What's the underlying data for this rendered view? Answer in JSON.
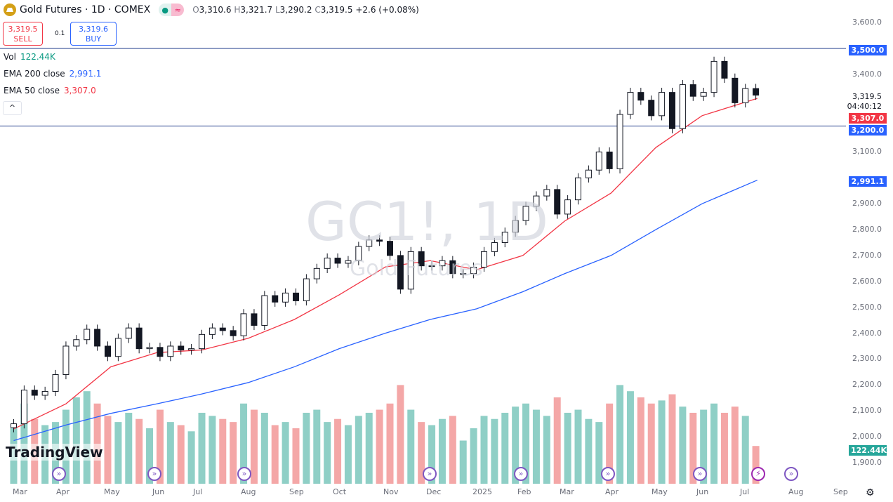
{
  "header": {
    "title": "Gold Futures · 1D · COMEX",
    "open_label": "O",
    "open": "3,310.6",
    "high_label": "H",
    "high": "3,321.7",
    "low_label": "L",
    "low": "3,290.2",
    "close_label": "C",
    "close": "3,319.5",
    "change": "+2.6 (+0.08%)",
    "market_status_icon": "dot",
    "delay_icon": "≈"
  },
  "trade": {
    "sell_price": "3,319.5",
    "sell_label": "SELL",
    "spread": "0.1",
    "buy_price": "3,319.6",
    "buy_label": "BUY"
  },
  "legend": {
    "vol_label": "Vol",
    "vol_value": "122.44K",
    "ema200_label": "EMA 200 close",
    "ema200_value": "2,991.1",
    "ema50_label": "EMA 50 close",
    "ema50_value": "3,307.0",
    "collapse": "^"
  },
  "watermark": {
    "symbol": "GC1!, 1D",
    "name": "Gold Futures"
  },
  "price_axis": {
    "ticks": [
      "3,600.0",
      "3,400.0",
      "3,100.0",
      "2,900.0",
      "2,800.0",
      "2,700.0",
      "2,600.0",
      "2,500.0",
      "2,400.0",
      "2,300.0",
      "2,200.0",
      "2,100.0",
      "2,000.0",
      "1,900.0"
    ],
    "labels": {
      "line_3500": "3,500.0",
      "line_3200": "3,200.0",
      "last": "3,319.5",
      "countdown": "04:40:12",
      "ema50": "3,307.0",
      "ema200": "2,991.1",
      "volume": "122.44K"
    }
  },
  "time_axis": [
    "Mar",
    "Apr",
    "May",
    "Jun",
    "Jul",
    "Aug",
    "Sep",
    "Oct",
    "Nov",
    "Dec",
    "2025",
    "Feb",
    "Mar",
    "Apr",
    "May",
    "Jun",
    "Jul",
    "Aug",
    "Sep"
  ],
  "branding": "TradingView",
  "colors": {
    "up": "#089981",
    "down": "#f23645",
    "ema50": "#f23645",
    "ema200": "#2962ff",
    "hline": "#1e3a8a",
    "vol_up": "#8fcfc6",
    "vol_down": "#f4a7a7"
  },
  "chart_data": {
    "type": "candlestick",
    "ylim": [
      1900,
      3600
    ],
    "horizontal_lines": [
      3500,
      3200
    ],
    "dates": [
      "2024-02-26",
      "2024-03-04",
      "2024-03-11",
      "2024-03-18",
      "2024-03-25",
      "2024-04-01",
      "2024-04-08",
      "2024-04-15",
      "2024-04-22",
      "2024-04-29",
      "2024-05-06",
      "2024-05-13",
      "2024-05-20",
      "2024-05-27",
      "2024-06-03",
      "2024-06-10",
      "2024-06-17",
      "2024-06-24",
      "2024-07-01",
      "2024-07-08",
      "2024-07-15",
      "2024-07-22",
      "2024-07-29",
      "2024-08-05",
      "2024-08-12",
      "2024-08-19",
      "2024-08-26",
      "2024-09-02",
      "2024-09-09",
      "2024-09-16",
      "2024-09-23",
      "2024-09-30",
      "2024-10-07",
      "2024-10-14",
      "2024-10-21",
      "2024-10-28",
      "2024-11-04",
      "2024-11-11",
      "2024-11-18",
      "2024-11-25",
      "2024-12-02",
      "2024-12-09",
      "2024-12-16",
      "2024-12-23",
      "2024-12-30",
      "2025-01-06",
      "2025-01-13",
      "2025-01-20",
      "2025-01-27",
      "2025-02-03",
      "2025-02-10",
      "2025-02-17",
      "2025-02-24",
      "2025-03-03",
      "2025-03-10",
      "2025-03-17",
      "2025-03-24",
      "2025-03-31",
      "2025-04-07",
      "2025-04-14",
      "2025-04-21",
      "2025-04-28",
      "2025-05-05",
      "2025-05-12",
      "2025-05-19",
      "2025-05-26",
      "2025-06-02",
      "2025-06-09",
      "2025-06-16",
      "2025-06-23",
      "2025-06-30",
      "2025-07-07"
    ],
    "close": [
      2050,
      2180,
      2160,
      2175,
      2240,
      2350,
      2375,
      2415,
      2350,
      2310,
      2380,
      2420,
      2340,
      2345,
      2310,
      2350,
      2335,
      2340,
      2395,
      2420,
      2410,
      2390,
      2475,
      2430,
      2545,
      2520,
      2555,
      2525,
      2610,
      2650,
      2690,
      2670,
      2680,
      2735,
      2760,
      2755,
      2700,
      2570,
      2715,
      2660,
      2660,
      2680,
      2630,
      2630,
      2655,
      2715,
      2750,
      2790,
      2835,
      2890,
      2930,
      2955,
      2860,
      2915,
      3000,
      3030,
      3100,
      3035,
      3245,
      3330,
      3300,
      3240,
      3330,
      3190,
      3360,
      3315,
      3330,
      3450,
      3385,
      3290,
      3345,
      3319.5
    ],
    "volume_k": [
      180,
      260,
      210,
      190,
      200,
      240,
      280,
      300,
      260,
      220,
      200,
      230,
      210,
      180,
      240,
      200,
      190,
      170,
      230,
      220,
      210,
      200,
      260,
      240,
      230,
      190,
      200,
      180,
      230,
      240,
      200,
      210,
      190,
      220,
      230,
      240,
      260,
      320,
      240,
      200,
      190,
      210,
      220,
      140,
      180,
      220,
      210,
      230,
      250,
      260,
      240,
      220,
      280,
      230,
      240,
      210,
      200,
      260,
      320,
      300,
      280,
      260,
      270,
      290,
      250,
      230,
      240,
      260,
      230,
      250,
      220,
      122.44
    ],
    "ema50": {
      "dates": [
        "2024-02-26",
        "2024-04-01",
        "2024-05-01",
        "2024-06-01",
        "2024-07-01",
        "2024-08-01",
        "2024-09-01",
        "2024-10-01",
        "2024-11-01",
        "2024-12-01",
        "2025-01-01",
        "2025-02-01",
        "2025-03-01",
        "2025-04-01",
        "2025-05-01",
        "2025-06-01",
        "2025-07-08"
      ],
      "values": [
        2030,
        2127,
        2270,
        2325,
        2335,
        2380,
        2453,
        2548,
        2656,
        2680,
        2645,
        2700,
        2833,
        2941,
        3117,
        3240,
        3307
      ]
    },
    "ema200": {
      "dates": [
        "2024-02-26",
        "2024-04-01",
        "2024-05-01",
        "2024-06-01",
        "2024-07-01",
        "2024-08-01",
        "2024-09-01",
        "2024-10-01",
        "2024-11-01",
        "2024-12-01",
        "2025-01-01",
        "2025-02-01",
        "2025-03-01",
        "2025-04-01",
        "2025-05-01",
        "2025-06-01",
        "2025-07-08"
      ],
      "values": [
        1985,
        2045,
        2090,
        2127,
        2165,
        2209,
        2270,
        2340,
        2400,
        2453,
        2494,
        2560,
        2630,
        2700,
        2800,
        2900,
        2991.1
      ]
    }
  }
}
